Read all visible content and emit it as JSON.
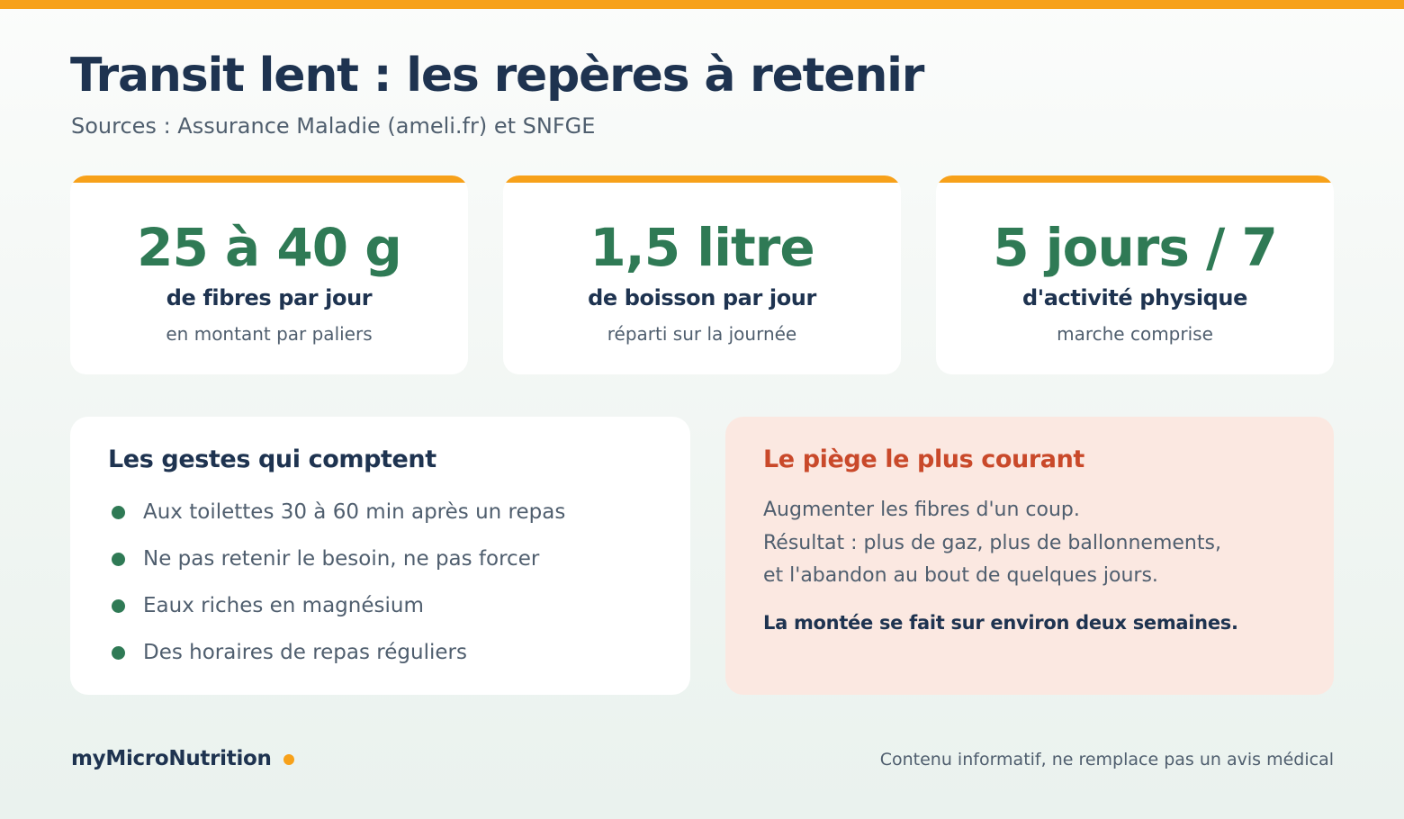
{
  "header": {
    "title": "Transit lent : les repères à retenir",
    "subtitle": "Sources : Assurance Maladie (ameli.fr) et SNFGE"
  },
  "stats": [
    {
      "value": "25 à 40 g",
      "label": "de fibres par jour",
      "note": "en montant par paliers"
    },
    {
      "value": "1,5 litre",
      "label": "de boisson par jour",
      "note": "réparti sur la journée"
    },
    {
      "value": "5 jours / 7",
      "label": "d'activité physique",
      "note": "marche comprise"
    }
  ],
  "gestures": {
    "title": "Les gestes qui comptent",
    "items": [
      "Aux toilettes 30 à 60 min après un repas",
      "Ne pas retenir le besoin, ne pas forcer",
      "Eaux riches en magnésium",
      "Des horaires de repas réguliers"
    ]
  },
  "trap": {
    "title": "Le piège le plus courant",
    "lines": [
      "Augmenter les fibres d'un coup.",
      "Résultat : plus de gaz, plus de ballonnements,",
      "et l'abandon au bout de quelques jours."
    ],
    "strong": "La montée se fait sur environ deux semaines."
  },
  "footer": {
    "brand": "myMicroNutrition",
    "disclaimer": "Contenu informatif, ne remplace pas un avis médical"
  },
  "colors": {
    "accent": "#f7a11a",
    "green": "#2f7a55",
    "navy": "#1e3350",
    "alert": "#c9492a",
    "alert_bg": "#fbe8e1"
  }
}
